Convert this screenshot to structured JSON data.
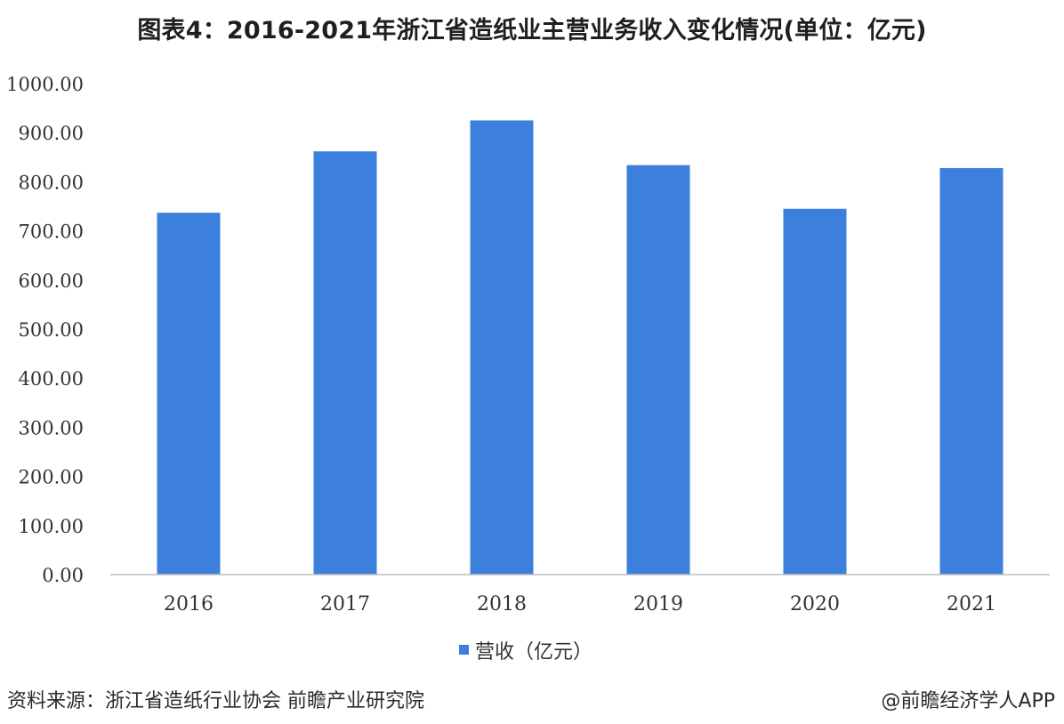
{
  "title": "图表4：2016-2021年浙江省造纸业主营业务收入变化情况(单位：亿元)",
  "source": "资料来源：浙江省造纸行业协会 前瞻产业研究院",
  "credit": "@前瞻经济学人APP",
  "colors": {
    "bar": "#3d7fdc",
    "axis": "#bdbdbd",
    "text": "#333333"
  },
  "chart_data": {
    "type": "bar",
    "categories": [
      "2016",
      "2017",
      "2018",
      "2019",
      "2020",
      "2021"
    ],
    "series": [
      {
        "name": "营收（亿元）",
        "values": [
          737,
          862,
          925,
          834,
          745,
          828
        ]
      }
    ],
    "ylim": [
      0,
      1000
    ],
    "yticks": [
      0,
      100,
      200,
      300,
      400,
      500,
      600,
      700,
      800,
      900,
      1000
    ],
    "ytick_labels": [
      "0.00",
      "100.00",
      "200.00",
      "300.00",
      "400.00",
      "500.00",
      "600.00",
      "700.00",
      "800.00",
      "900.00",
      "1000.00"
    ],
    "grid": false,
    "legend": "bottom",
    "xlabel": "",
    "ylabel": ""
  }
}
